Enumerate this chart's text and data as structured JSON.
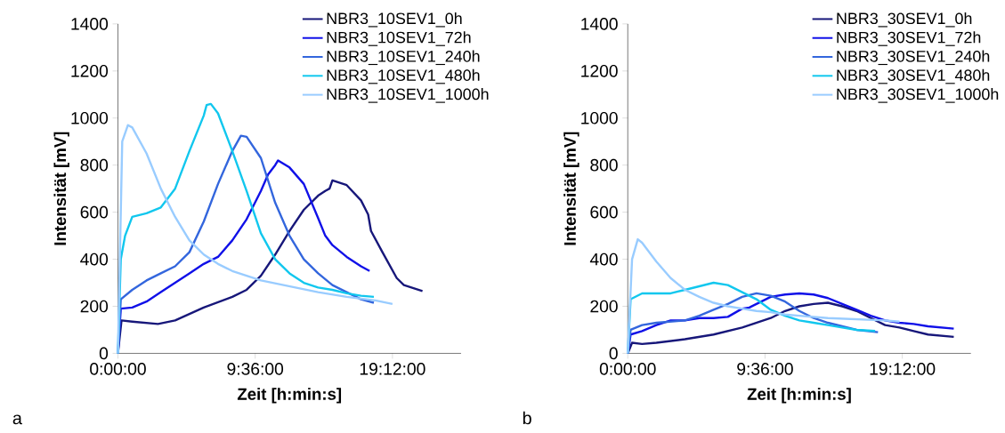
{
  "chart_data": [
    {
      "type": "line",
      "xlabel": "Zeit [h:min:s]",
      "ylabel": "Intensität [mV]",
      "annotations": [
        "a"
      ],
      "xlim": [
        0,
        24
      ],
      "ylim": [
        0,
        1400
      ],
      "xticks": [
        {
          "value": 0,
          "label": "0:00:00"
        },
        {
          "value": 9.6,
          "label": "9:36:00"
        },
        {
          "value": 19.2,
          "label": "19:12:00"
        }
      ],
      "yticks": [
        0,
        200,
        400,
        600,
        800,
        1000,
        1200,
        1400
      ],
      "legend": "top right",
      "series": [
        {
          "name": "NBR3_10SEV1_0h",
          "color": "#17177a",
          "x": [
            0,
            0.25,
            1,
            2.8,
            4,
            6,
            8,
            9,
            10,
            11,
            12,
            13,
            14,
            14.5,
            14.8,
            15,
            16,
            17,
            17.5,
            17.7,
            18.5,
            19.5,
            20,
            21.3
          ],
          "values": [
            0,
            140,
            135,
            125,
            140,
            195,
            240,
            270,
            330,
            420,
            520,
            610,
            670,
            690,
            700,
            735,
            715,
            650,
            590,
            520,
            430,
            320,
            290,
            265
          ]
        },
        {
          "name": "NBR3_10SEV1_72h",
          "color": "#1010e8",
          "x": [
            0,
            0.2,
            1,
            2,
            3,
            4,
            5,
            6,
            7,
            8,
            9,
            10,
            10.5,
            11,
            11.2,
            12,
            13,
            14,
            14.5,
            15,
            16,
            17,
            17.6
          ],
          "values": [
            0,
            190,
            195,
            220,
            260,
            300,
            340,
            380,
            410,
            480,
            570,
            690,
            760,
            800,
            820,
            790,
            720,
            575,
            500,
            460,
            410,
            370,
            350
          ]
        },
        {
          "name": "NBR3_10SEV1_240h",
          "color": "#3366dd",
          "x": [
            0,
            0.2,
            1,
            2,
            3,
            4,
            5,
            6,
            7,
            8,
            8.6,
            9,
            10,
            11,
            12,
            13,
            14,
            15,
            16,
            17,
            17.9
          ],
          "values": [
            0,
            230,
            270,
            310,
            340,
            370,
            430,
            560,
            720,
            860,
            925,
            920,
            830,
            640,
            500,
            400,
            340,
            290,
            260,
            230,
            215
          ]
        },
        {
          "name": "NBR3_10SEV1_480h",
          "color": "#11c7ee",
          "x": [
            0,
            0.2,
            0.5,
            1,
            2,
            3,
            4,
            5,
            6,
            6.2,
            6.5,
            7,
            8,
            9,
            10,
            11,
            12,
            13,
            14,
            15,
            16,
            17,
            17.9
          ],
          "values": [
            0,
            400,
            500,
            580,
            595,
            620,
            700,
            860,
            1010,
            1055,
            1060,
            1020,
            860,
            690,
            510,
            400,
            340,
            300,
            280,
            270,
            255,
            245,
            240
          ]
        },
        {
          "name": "NBR3_10SEV1_1000h",
          "color": "#99ccff",
          "x": [
            0,
            0.3,
            0.7,
            1,
            2,
            3,
            4,
            5,
            6,
            7,
            8,
            9,
            10,
            12,
            14,
            16,
            18,
            19.2
          ],
          "values": [
            0,
            900,
            970,
            960,
            850,
            700,
            580,
            480,
            420,
            380,
            350,
            330,
            310,
            285,
            260,
            240,
            225,
            210
          ]
        }
      ]
    },
    {
      "type": "line",
      "xlabel": "Zeit [h:min:s]",
      "ylabel": "Intensität [mV]",
      "annotations": [
        "b"
      ],
      "xlim": [
        0,
        24
      ],
      "ylim": [
        0,
        1400
      ],
      "xticks": [
        {
          "value": 0,
          "label": "0:00:00"
        },
        {
          "value": 9.6,
          "label": "9:36:00"
        },
        {
          "value": 19.2,
          "label": "19:12:00"
        }
      ],
      "yticks": [
        0,
        200,
        400,
        600,
        800,
        1000,
        1200,
        1400
      ],
      "legend": "top right",
      "series": [
        {
          "name": "NBR3_30SEV1_0h",
          "color": "#17177a",
          "x": [
            0,
            0.3,
            1,
            2,
            4,
            6,
            8,
            10,
            11,
            12,
            13,
            14,
            15,
            16,
            17,
            18,
            19,
            20,
            21,
            22.8
          ],
          "values": [
            0,
            45,
            40,
            45,
            60,
            80,
            110,
            150,
            180,
            200,
            210,
            215,
            200,
            180,
            150,
            120,
            110,
            95,
            80,
            70
          ]
        },
        {
          "name": "NBR3_30SEV1_72h",
          "color": "#1010e8",
          "x": [
            0,
            0.2,
            1,
            2,
            3,
            4,
            5,
            6,
            7,
            8,
            8.5,
            9,
            10,
            11,
            12,
            13,
            14,
            15,
            16,
            17,
            18,
            19,
            20,
            21,
            22.8
          ],
          "values": [
            0,
            80,
            95,
            120,
            140,
            140,
            150,
            150,
            155,
            190,
            195,
            210,
            240,
            250,
            255,
            250,
            235,
            210,
            185,
            160,
            140,
            130,
            125,
            115,
            105
          ]
        },
        {
          "name": "NBR3_30SEV1_240h",
          "color": "#3366dd",
          "x": [
            0,
            0.2,
            1,
            2,
            4,
            5,
            6,
            7,
            8,
            9,
            10,
            11,
            12,
            13,
            14,
            15,
            16,
            17.5
          ],
          "values": [
            0,
            100,
            120,
            130,
            140,
            160,
            185,
            210,
            240,
            255,
            245,
            220,
            180,
            150,
            130,
            115,
            100,
            90
          ]
        },
        {
          "name": "NBR3_30SEV1_480h",
          "color": "#11c7ee",
          "x": [
            0,
            0.2,
            1,
            2,
            3,
            4,
            5,
            6,
            7,
            8,
            9,
            10,
            11,
            12,
            13,
            14,
            15,
            16,
            17.3
          ],
          "values": [
            0,
            230,
            255,
            255,
            255,
            270,
            285,
            300,
            290,
            260,
            230,
            185,
            160,
            140,
            130,
            120,
            110,
            100,
            95
          ]
        },
        {
          "name": "NBR3_30SEV1_1000h",
          "color": "#99ccff",
          "x": [
            0,
            0.3,
            0.7,
            1,
            2,
            3,
            4,
            5,
            6,
            7,
            8,
            9,
            10,
            11,
            12,
            14,
            16,
            18,
            19
          ],
          "values": [
            0,
            400,
            485,
            470,
            390,
            320,
            270,
            240,
            215,
            200,
            190,
            180,
            175,
            165,
            160,
            150,
            145,
            140,
            135
          ]
        }
      ]
    }
  ]
}
